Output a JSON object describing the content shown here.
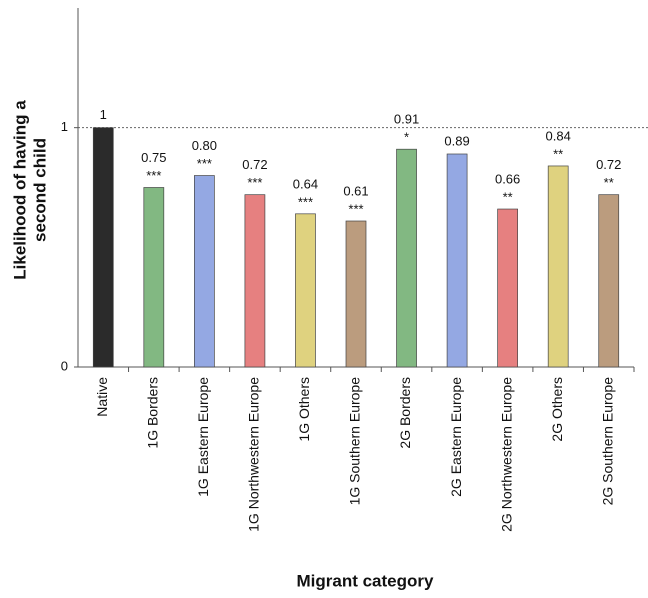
{
  "chart_data": {
    "type": "bar",
    "ylabel": [
      "Likelihood of having a",
      "second child"
    ],
    "xlabel": "Migrant category",
    "categories": [
      "Native",
      "1G Borders",
      "1G Eastern Europe",
      "1G Northwestern Europe",
      "1G Others",
      "1G Southern Europe",
      "2G Borders",
      "2G Eastern Europe",
      "2G Northwestern Europe",
      "2G Others",
      "2G Southern Europe"
    ],
    "values": [
      1,
      0.75,
      0.8,
      0.72,
      0.64,
      0.61,
      0.91,
      0.89,
      0.66,
      0.84,
      0.72
    ],
    "value_labels": [
      "1",
      "0.75",
      "0.80",
      "0.72",
      "0.64",
      "0.61",
      "0.91",
      "0.89",
      "0.66",
      "0.84",
      "0.72"
    ],
    "significance": [
      null,
      "***",
      "***",
      "***",
      "***",
      "***",
      "*",
      null,
      "**",
      "**",
      "**"
    ],
    "colors": [
      "#2b2b2b",
      "#82b882",
      "#94a8e3",
      "#e68080",
      "#dfd27f",
      "#bb9c7e",
      "#82b882",
      "#94a8e3",
      "#e68080",
      "#dfd27f",
      "#bb9c7e"
    ],
    "ylim": [
      0,
      1.5
    ],
    "yticks": [
      0,
      1
    ],
    "reference_line": 1
  }
}
